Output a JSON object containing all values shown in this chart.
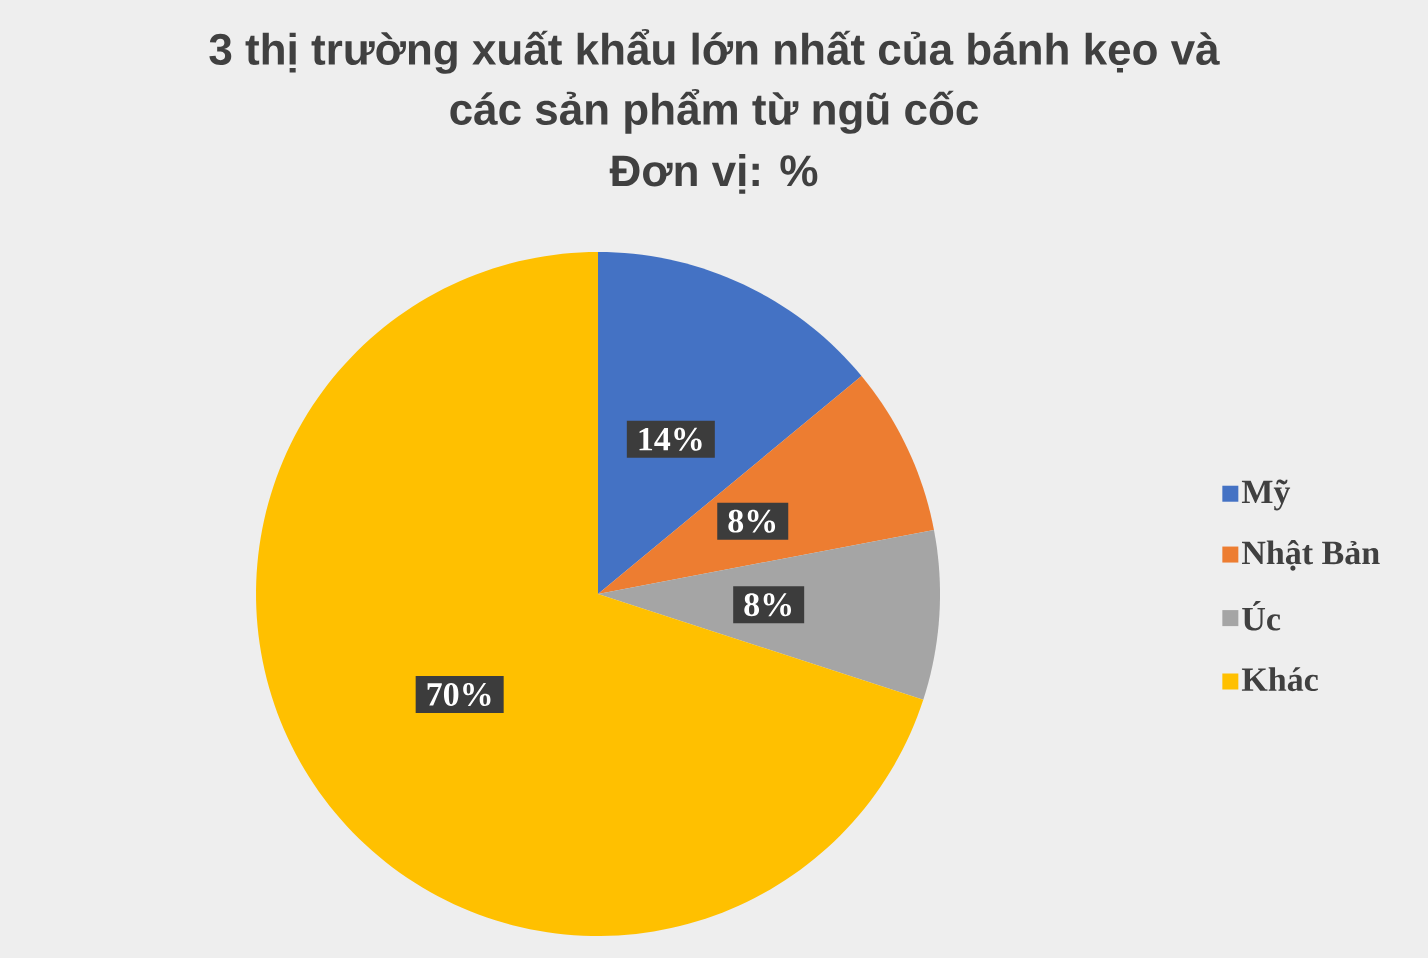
{
  "chart_data": {
    "type": "pie",
    "title": "3 thị trường xuất khẩu lớn nhất của bánh kẹo và các sản phẩm từ ngũ cốc",
    "subtitle": "Đơn vị: %",
    "categories": [
      "Mỹ",
      "Nhật Bản",
      "Úc",
      "Khác"
    ],
    "values": [
      14,
      8,
      8,
      70
    ],
    "colors": [
      "#4472c4",
      "#ed7d31",
      "#a5a5a5",
      "#ffc000"
    ],
    "value_labels": [
      "14%",
      "8%",
      "8%",
      "70%"
    ],
    "legend": "right"
  }
}
